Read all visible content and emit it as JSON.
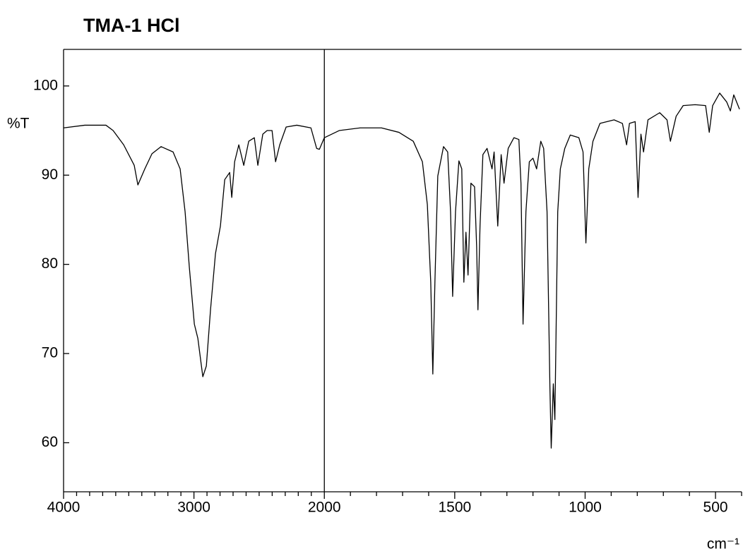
{
  "chart_data": {
    "type": "line",
    "title": "TMA-1 HCl",
    "y_label": "%T",
    "x_label": "cm⁻¹",
    "xlim": [
      4000,
      400
    ],
    "xbreak": 2000,
    "xbreak_factor": 2,
    "xticks": [
      4000,
      3000,
      2000,
      1500,
      1000,
      500
    ],
    "xminorticks": [
      3900,
      3800,
      3700,
      3600,
      3500,
      3400,
      3300,
      3200,
      3100,
      2900,
      2800,
      2700,
      2600,
      2500,
      2400,
      2300,
      2200,
      2100,
      1900,
      1800,
      1700,
      1600,
      1400,
      1300,
      1200,
      1100,
      900,
      800,
      700,
      600,
      400
    ],
    "ylim": [
      54.5,
      104.1
    ],
    "yticks": [
      60,
      70,
      80,
      90,
      100
    ],
    "series": [
      {
        "color": "#000000",
        "x": [
          4000,
          3837,
          3675,
          3620,
          3539,
          3458,
          3430,
          3377,
          3322,
          3252,
          3160,
          3106,
          3068,
          3035,
          2997,
          2970,
          2932,
          2905,
          2873,
          2835,
          2797,
          2764,
          2726,
          2710,
          2688,
          2656,
          2618,
          2580,
          2537,
          2510,
          2472,
          2439,
          2401,
          2374,
          2342,
          2293,
          2211,
          2103,
          2059,
          2038,
          2000,
          1943,
          1862,
          1781,
          1714,
          1659,
          1624,
          1605,
          1592,
          1584,
          1576,
          1565,
          1543,
          1527,
          1516,
          1508,
          1497,
          1484,
          1473,
          1465,
          1457,
          1449,
          1438,
          1424,
          1416,
          1411,
          1403,
          1392,
          1376,
          1357,
          1349,
          1335,
          1322,
          1311,
          1295,
          1273,
          1254,
          1246,
          1238,
          1227,
          1214,
          1200,
          1186,
          1170,
          1159,
          1146,
          1135,
          1130,
          1122,
          1116,
          1105,
          1095,
          1078,
          1057,
          1024,
          1008,
          997,
          986,
          970,
          943,
          889,
          857,
          841,
          830,
          808,
          797,
          786,
          776,
          759,
          714,
          686,
          673,
          651,
          624,
          578,
          538,
          524,
          511,
          484,
          457,
          443,
          430,
          408
        ],
        "values": [
          95.3,
          95.6,
          95.6,
          95.0,
          93.4,
          91.1,
          88.9,
          90.7,
          92.4,
          93.2,
          92.6,
          90.7,
          85.9,
          79.6,
          73.3,
          71.7,
          67.4,
          68.6,
          74.9,
          81.2,
          84.3,
          89.5,
          90.3,
          87.5,
          91.5,
          93.4,
          91.1,
          93.8,
          94.2,
          91.1,
          94.6,
          95.0,
          95.0,
          91.5,
          93.4,
          95.4,
          95.6,
          95.3,
          93.0,
          92.9,
          94.2,
          95.0,
          95.3,
          95.3,
          94.8,
          93.8,
          91.5,
          86.7,
          78.0,
          67.7,
          78.0,
          89.9,
          93.2,
          92.6,
          85.9,
          76.4,
          85.9,
          91.6,
          90.7,
          78.0,
          83.6,
          78.8,
          89.1,
          88.7,
          82.0,
          74.9,
          84.3,
          92.3,
          93.0,
          90.7,
          92.6,
          84.3,
          92.3,
          89.1,
          93.0,
          94.2,
          94.0,
          89.1,
          73.3,
          85.9,
          91.5,
          91.9,
          90.7,
          93.8,
          93.0,
          85.9,
          66.2,
          59.4,
          66.6,
          62.6,
          85.9,
          90.7,
          93.0,
          94.5,
          94.2,
          92.6,
          82.4,
          90.7,
          93.8,
          95.8,
          96.2,
          95.8,
          93.4,
          95.8,
          96.0,
          87.5,
          94.6,
          92.6,
          96.2,
          97.0,
          96.2,
          93.8,
          96.6,
          97.8,
          97.9,
          97.8,
          94.8,
          97.8,
          99.2,
          98.2,
          97.2,
          99.0,
          97.4
        ]
      }
    ]
  }
}
